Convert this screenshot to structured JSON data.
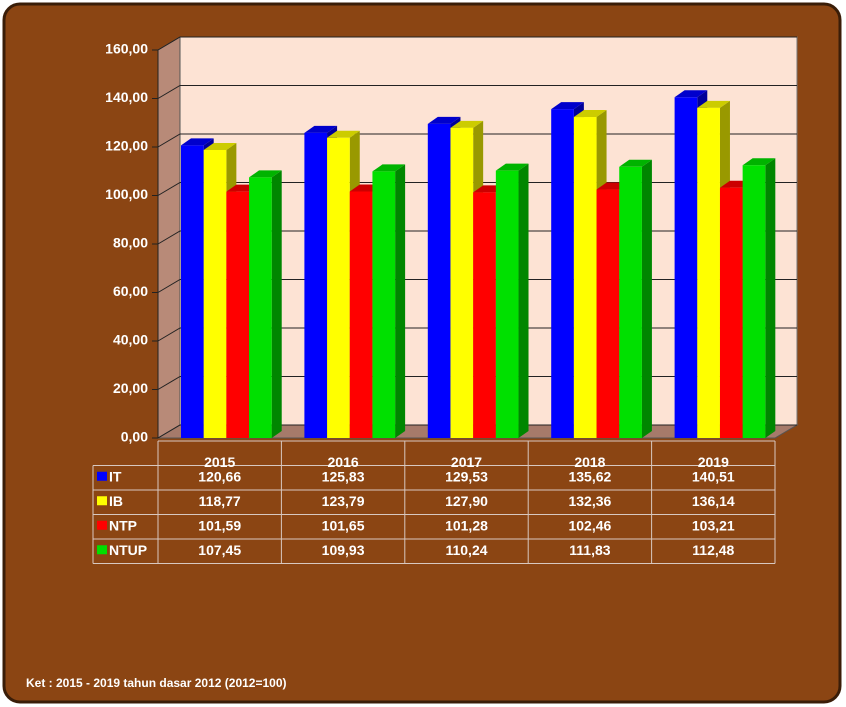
{
  "chart_data": {
    "type": "bar",
    "categories": [
      "2015",
      "2016",
      "2017",
      "2018",
      "2019"
    ],
    "series": [
      {
        "name": "IT",
        "color": "#0000ff",
        "values": [
          120.66,
          125.83,
          129.53,
          135.62,
          140.51
        ],
        "value_labels": [
          "120,66",
          "125,83",
          "129,53",
          "135,62",
          "140,51"
        ]
      },
      {
        "name": "IB",
        "color": "#ffff00",
        "values": [
          118.77,
          123.79,
          127.9,
          132.36,
          136.14
        ],
        "value_labels": [
          "118,77",
          "123,79",
          "127,90",
          "132,36",
          "136,14"
        ]
      },
      {
        "name": "NTP",
        "color": "#ff0000",
        "values": [
          101.59,
          101.65,
          101.28,
          102.46,
          103.21
        ],
        "value_labels": [
          "101,59",
          "101,65",
          "101,28",
          "102,46",
          "103,21"
        ]
      },
      {
        "name": "NTUP",
        "color": "#00e000",
        "values": [
          107.45,
          109.93,
          110.24,
          111.83,
          112.48
        ],
        "value_labels": [
          "107,45",
          "109,93",
          "110,24",
          "111,83",
          "112,48"
        ]
      }
    ],
    "ylim": [
      0,
      160
    ],
    "yticks": [
      {
        "value": 0,
        "label": "0,00"
      },
      {
        "value": 20,
        "label": "20,00"
      },
      {
        "value": 40,
        "label": "40,00"
      },
      {
        "value": 60,
        "label": "60,00"
      },
      {
        "value": 80,
        "label": "80,00"
      },
      {
        "value": 100,
        "label": "100,00"
      },
      {
        "value": 120,
        "label": "120,00"
      },
      {
        "value": 140,
        "label": "140,00"
      },
      {
        "value": 160,
        "label": "160,00"
      }
    ],
    "grid": true,
    "note": "Ket : 2015 - 2019 tahun dasar 2012 (2012=100)"
  }
}
